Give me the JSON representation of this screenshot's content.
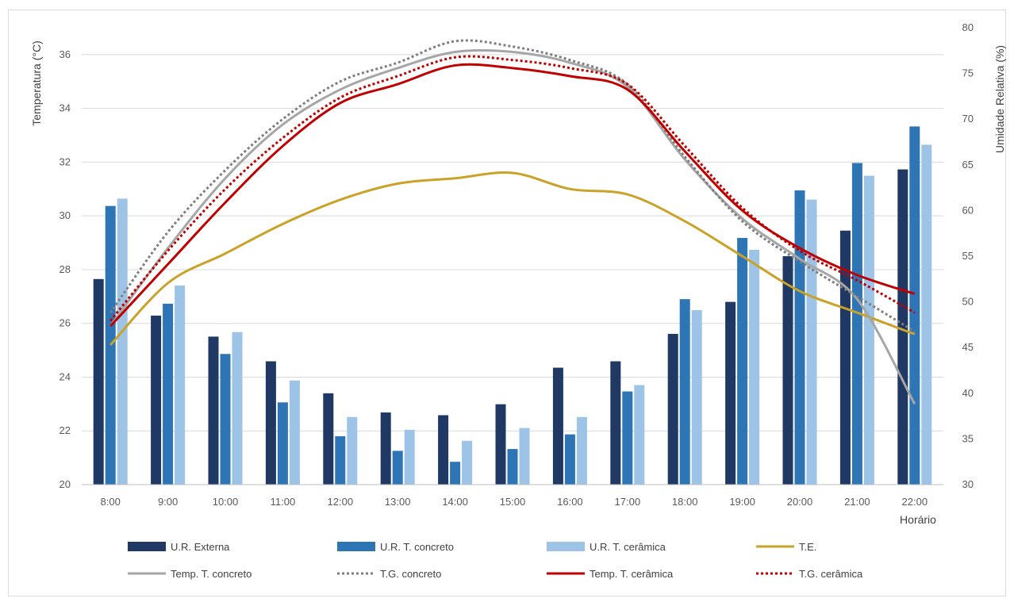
{
  "chart_data": {
    "type": "bar",
    "categories": [
      "8:00",
      "9:00",
      "10:00",
      "11:00",
      "12:00",
      "13:00",
      "14:00",
      "15:00",
      "16:00",
      "17:00",
      "18:00",
      "19:00",
      "20:00",
      "21:00",
      "22:00"
    ],
    "xlabel": "Horário",
    "ylabel_left": "Temperatura (°C)",
    "ylabel_right": "Umidade Relativa (%)",
    "y_left": {
      "min": 20,
      "max": 37,
      "ticks": [
        20,
        22,
        24,
        26,
        28,
        30,
        32,
        34,
        36
      ]
    },
    "y_right": {
      "min": 30,
      "max": 80,
      "ticks": [
        30,
        35,
        40,
        45,
        50,
        55,
        60,
        65,
        70,
        75,
        80
      ]
    },
    "grid": true,
    "legend_position": "bottom",
    "bar_series": [
      {
        "name": "U.R. Externa",
        "color": "#1f3864",
        "axis": "right",
        "values": [
          52.5,
          48.5,
          46.2,
          43.5,
          40.0,
          37.9,
          37.6,
          38.8,
          42.8,
          43.5,
          46.5,
          50.0,
          55.0,
          57.8,
          64.5
        ]
      },
      {
        "name": "U.R. T. concreto",
        "color": "#2e75b6",
        "axis": "right",
        "values": [
          60.5,
          49.8,
          44.3,
          39.0,
          35.3,
          33.7,
          32.5,
          33.9,
          35.5,
          40.2,
          50.3,
          57.0,
          62.2,
          65.2,
          69.2
        ]
      },
      {
        "name": "U.R. T. cerâmica",
        "color": "#9dc3e6",
        "axis": "right",
        "values": [
          61.3,
          51.8,
          46.7,
          41.4,
          37.4,
          36.0,
          34.8,
          36.2,
          37.4,
          40.9,
          49.1,
          55.7,
          61.2,
          63.8,
          67.2
        ]
      }
    ],
    "line_series": [
      {
        "name": "T.E.",
        "color": "#c9a227",
        "style": "solid",
        "axis": "left",
        "values": [
          25.2,
          27.5,
          28.6,
          29.7,
          30.6,
          31.2,
          31.4,
          31.6,
          31.0,
          30.8,
          29.8,
          28.5,
          27.2,
          26.4,
          25.6
        ]
      },
      {
        "name": "Temp. T. concreto",
        "color": "#a6a6a6",
        "style": "solid",
        "axis": "left",
        "values": [
          25.9,
          28.8,
          31.4,
          33.4,
          34.7,
          35.5,
          36.1,
          36.1,
          35.7,
          34.8,
          32.1,
          29.9,
          28.4,
          26.9,
          23.0
        ]
      },
      {
        "name": "T.G. concreto",
        "color": "#7f7f7f",
        "style": "dotted",
        "axis": "left",
        "values": [
          26.4,
          29.4,
          31.7,
          33.6,
          35.0,
          35.7,
          36.5,
          36.3,
          35.8,
          34.9,
          32.2,
          29.8,
          28.3,
          27.0,
          25.7
        ]
      },
      {
        "name": "Temp. T. cerâmica",
        "color": "#c00000",
        "style": "solid",
        "axis": "left",
        "values": [
          25.9,
          28.2,
          30.5,
          32.6,
          34.2,
          34.9,
          35.6,
          35.5,
          35.2,
          34.7,
          32.4,
          30.2,
          28.8,
          27.8,
          27.1
        ]
      },
      {
        "name": "T.G. cerâmica",
        "color": "#c00000",
        "style": "dotted",
        "axis": "left",
        "values": [
          26.1,
          28.7,
          31.0,
          32.9,
          34.4,
          35.2,
          35.9,
          35.8,
          35.5,
          34.9,
          32.6,
          30.3,
          28.7,
          27.6,
          26.4
        ]
      }
    ],
    "legend": [
      [
        "U.R. Externa",
        "U.R. T. concreto",
        "U.R. T. cerâmica",
        "T.E."
      ],
      [
        "Temp. T. concreto",
        "T.G. concreto",
        "Temp. T. cerâmica",
        "T.G. cerâmica"
      ]
    ]
  }
}
